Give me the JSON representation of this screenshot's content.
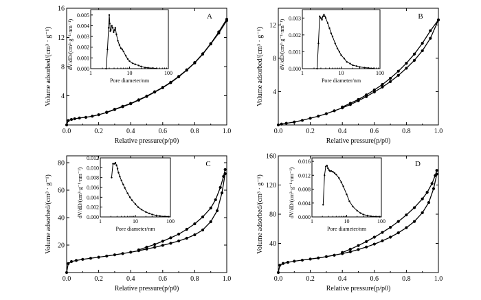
{
  "chart_data": [
    {
      "type": "line",
      "panel_label": "A",
      "xlabel": "Relative pressure(p/p0)",
      "ylabel": "Volume adsorbed/(cm³ · g⁻¹)",
      "xlim": [
        0,
        1.0
      ],
      "ylim": [
        0,
        16
      ],
      "xticks": [
        "0.0",
        "0.2",
        "0.4",
        "0.6",
        "0.8",
        "1.0"
      ],
      "yticks": [
        "4",
        "8",
        "12",
        "16"
      ],
      "series": [
        {
          "x": [
            0.0,
            0.01,
            0.03,
            0.05,
            0.08,
            0.12,
            0.16,
            0.2,
            0.25,
            0.3,
            0.35,
            0.4,
            0.45,
            0.5,
            0.55,
            0.6,
            0.65,
            0.7,
            0.75,
            0.8,
            0.85,
            0.9,
            0.95,
            1.0
          ],
          "y": [
            0.0,
            0.6,
            0.75,
            0.85,
            0.95,
            1.05,
            1.2,
            1.4,
            1.7,
            2.1,
            2.5,
            2.9,
            3.4,
            3.9,
            4.5,
            5.1,
            5.8,
            6.6,
            7.5,
            8.5,
            9.7,
            11.1,
            12.6,
            14.3
          ]
        },
        {
          "x": [
            0.25,
            0.3,
            0.35,
            0.4,
            0.45,
            0.5,
            0.55,
            0.6,
            0.65,
            0.7,
            0.75,
            0.8,
            0.85,
            0.9,
            0.95,
            1.0
          ],
          "y": [
            1.75,
            2.15,
            2.55,
            2.95,
            3.45,
            3.95,
            4.55,
            5.15,
            5.85,
            6.65,
            7.55,
            8.55,
            9.75,
            11.15,
            12.75,
            14.5
          ]
        }
      ],
      "inset": {
        "xlabel": "Pore diameter/nm",
        "ylabel": "dV/dD/(cm³·g⁻¹·nm⁻¹)",
        "xscale": "log",
        "xlim": [
          1,
          100
        ],
        "ylim": [
          0,
          0.0055
        ],
        "xticks": [
          "1",
          "10",
          "100"
        ],
        "yticks": [
          "0.000",
          "0.001",
          "0.002",
          "0.003",
          "0.004",
          "0.005"
        ],
        "x": [
          2.5,
          2.7,
          2.9,
          3.0,
          3.1,
          3.2,
          3.3,
          3.5,
          3.7,
          3.9,
          4.1,
          4.3,
          4.6,
          5.0,
          5.5,
          6.0,
          6.5,
          7.0,
          8,
          9,
          10,
          12,
          14,
          17,
          20,
          25,
          30,
          40,
          50
        ],
        "y": [
          0.0,
          0.0018,
          0.0038,
          0.005,
          0.0042,
          0.0035,
          0.0036,
          0.004,
          0.0038,
          0.0034,
          0.0036,
          0.0038,
          0.0032,
          0.0026,
          0.0022,
          0.0019,
          0.0018,
          0.0016,
          0.0012,
          0.0009,
          0.0007,
          0.0005,
          0.0004,
          0.0003,
          0.0002,
          0.0001,
          8e-05,
          5e-05,
          3e-05
        ]
      }
    },
    {
      "type": "line",
      "panel_label": "B",
      "xlabel": "Relative pressure(p/p0)",
      "ylabel": "Volume adsorbed/(cm³ · g⁻¹)",
      "xlim": [
        0,
        1.0
      ],
      "ylim": [
        0,
        14
      ],
      "xticks": [
        "0.0",
        "0.2",
        "0.4",
        "0.6",
        "0.8",
        "1.0"
      ],
      "yticks": [
        "4",
        "8",
        "12"
      ],
      "series": [
        {
          "x": [
            0.0,
            0.02,
            0.05,
            0.1,
            0.15,
            0.2,
            0.25,
            0.3,
            0.35,
            0.4,
            0.45,
            0.5,
            0.55,
            0.6,
            0.65,
            0.7,
            0.75,
            0.8,
            0.85,
            0.9,
            0.95,
            1.0
          ],
          "y": [
            0.0,
            0.1,
            0.2,
            0.35,
            0.55,
            0.8,
            1.05,
            1.35,
            1.7,
            2.05,
            2.45,
            2.9,
            3.4,
            3.95,
            4.55,
            5.2,
            5.95,
            6.8,
            7.75,
            8.9,
            10.4,
            12.6
          ]
        },
        {
          "x": [
            0.4,
            0.45,
            0.5,
            0.55,
            0.6,
            0.65,
            0.7,
            0.75,
            0.8,
            0.85,
            0.9,
            0.95,
            1.0
          ],
          "y": [
            2.15,
            2.6,
            3.05,
            3.6,
            4.2,
            4.85,
            5.6,
            6.45,
            7.4,
            8.5,
            9.8,
            11.3,
            12.6
          ]
        }
      ],
      "inset": {
        "xlabel": "Pore diameter/nm",
        "ylabel": "dV/dD/(cm³·g⁻¹·nm⁻¹)",
        "xscale": "log",
        "xlim": [
          1,
          100
        ],
        "ylim": [
          0,
          0.0035
        ],
        "xticks": [
          "1",
          "10",
          "100"
        ],
        "yticks": [
          "0.000",
          "0.001",
          "0.002",
          "0.003"
        ],
        "x": [
          2.4,
          2.6,
          2.8,
          3.0,
          3.2,
          3.4,
          3.6,
          3.8,
          4.0,
          4.5,
          5.0,
          5.5,
          6,
          7,
          8,
          9,
          10,
          12,
          14,
          17,
          20,
          25,
          30,
          40,
          50,
          70
        ],
        "y": [
          0.0,
          0.0015,
          0.0031,
          0.003,
          0.0029,
          0.0031,
          0.0032,
          0.0031,
          0.003,
          0.0027,
          0.0024,
          0.0021,
          0.0019,
          0.0015,
          0.0012,
          0.001,
          0.0008,
          0.0006,
          0.0004,
          0.0003,
          0.0002,
          0.00015,
          0.0001,
          6e-05,
          4e-05,
          2e-05
        ]
      }
    },
    {
      "type": "line",
      "panel_label": "C",
      "xlabel": "Relative pressure(p/p0)",
      "ylabel": "Volume adsorbed/(cm³ · g⁻¹)",
      "xlim": [
        0,
        1.0
      ],
      "ylim": [
        0,
        85
      ],
      "xticks": [
        "0.0",
        "0.2",
        "0.4",
        "0.6",
        "0.8",
        "1.0"
      ],
      "yticks": [
        "20",
        "40",
        "60",
        "80"
      ],
      "series": [
        {
          "x": [
            0.0,
            0.01,
            0.03,
            0.06,
            0.1,
            0.15,
            0.2,
            0.25,
            0.3,
            0.35,
            0.4,
            0.45,
            0.5,
            0.55,
            0.6,
            0.65,
            0.7,
            0.75,
            0.8,
            0.85,
            0.9,
            0.94,
            0.97,
            0.99
          ],
          "y": [
            0.0,
            6.5,
            8.0,
            8.8,
            9.6,
            10.4,
            11.2,
            12.0,
            12.9,
            13.8,
            14.8,
            15.9,
            17.1,
            18.4,
            19.8,
            21.3,
            23.0,
            25.0,
            27.5,
            31.0,
            37.0,
            45.0,
            58.0,
            72.0
          ]
        },
        {
          "x": [
            0.45,
            0.5,
            0.55,
            0.6,
            0.65,
            0.7,
            0.75,
            0.8,
            0.85,
            0.9,
            0.93,
            0.96,
            0.98,
            0.99
          ],
          "y": [
            16.5,
            18.5,
            20.5,
            22.8,
            25.3,
            28.0,
            31.5,
            35.5,
            40.5,
            47.0,
            53.0,
            62.0,
            70.0,
            75.0
          ]
        }
      ],
      "inset": {
        "xlabel": "Pore diameter/nm",
        "ylabel": "dV/dD/(cm³·g⁻¹·nm⁻¹)",
        "xscale": "log",
        "xlim": [
          1,
          100
        ],
        "ylim": [
          0,
          0.012
        ],
        "xticks": [
          "1",
          "10",
          "100"
        ],
        "yticks": [
          "0.000",
          "0.002",
          "0.004",
          "0.006",
          "0.008",
          "0.010",
          "0.012"
        ],
        "x": [
          2.1,
          2.3,
          2.5,
          2.7,
          2.9,
          3.1,
          3.3,
          3.6,
          4.0,
          4.5,
          5,
          6,
          7,
          8,
          10,
          12,
          15,
          20,
          25,
          30,
          40,
          50,
          70,
          90
        ],
        "y": [
          0.008,
          0.0108,
          0.0108,
          0.011,
          0.0105,
          0.0098,
          0.009,
          0.0082,
          0.0074,
          0.0066,
          0.0059,
          0.0048,
          0.004,
          0.0034,
          0.0026,
          0.002,
          0.0015,
          0.001,
          0.0007,
          0.0005,
          0.0003,
          0.0002,
          0.0001,
          5e-05
        ]
      }
    },
    {
      "type": "line",
      "panel_label": "D",
      "xlabel": "Relative pressure(p/p0)",
      "ylabel": "Volume adsorbed/(cm³ · g⁻¹)",
      "xlim": [
        0,
        1.0
      ],
      "ylim": [
        0,
        160
      ],
      "xticks": [
        "0.0",
        "0.2",
        "0.4",
        "0.6",
        "0.8",
        "1.0"
      ],
      "yticks": [
        "40",
        "80",
        "120",
        "160"
      ],
      "series": [
        {
          "x": [
            0.0,
            0.01,
            0.03,
            0.06,
            0.1,
            0.15,
            0.2,
            0.25,
            0.3,
            0.35,
            0.4,
            0.45,
            0.5,
            0.55,
            0.6,
            0.65,
            0.7,
            0.75,
            0.8,
            0.85,
            0.9,
            0.94,
            0.97,
            0.99
          ],
          "y": [
            0.0,
            10.0,
            12.5,
            14.0,
            15.5,
            17.0,
            18.5,
            20.0,
            21.8,
            23.8,
            26.0,
            28.5,
            31.5,
            35.0,
            39.0,
            43.5,
            48.5,
            54.5,
            61.5,
            70.0,
            82.0,
            96.0,
            115.0,
            135.0
          ]
        },
        {
          "x": [
            0.4,
            0.45,
            0.5,
            0.55,
            0.6,
            0.65,
            0.7,
            0.75,
            0.8,
            0.85,
            0.9,
            0.93,
            0.96,
            0.98,
            0.99
          ],
          "y": [
            27.5,
            32.0,
            37.0,
            42.5,
            48.5,
            55.0,
            62.0,
            70.0,
            79.0,
            89.0,
            101.0,
            110.0,
            122.0,
            133.0,
            140.0
          ]
        }
      ],
      "inset": {
        "xlabel": "Pore diameter/nm",
        "ylabel": "dV/dD/(cm³·g⁻¹·nm⁻¹)",
        "xscale": "log",
        "xlim": [
          1,
          100
        ],
        "ylim": [
          0,
          0.017
        ],
        "xticks": [
          "1",
          "10",
          "100"
        ],
        "yticks": [
          "0.000",
          "0.004",
          "0.008",
          "0.012",
          "0.016"
        ],
        "x": [
          2.1,
          2.3,
          2.5,
          2.7,
          2.9,
          3.1,
          3.3,
          3.6,
          4.0,
          4.5,
          5,
          6,
          7,
          8,
          10,
          12,
          15,
          20,
          25,
          30,
          40,
          50,
          70,
          90
        ],
        "y": [
          0.0035,
          0.012,
          0.0145,
          0.0148,
          0.014,
          0.0135,
          0.0132,
          0.0132,
          0.013,
          0.0126,
          0.0122,
          0.0112,
          0.01,
          0.0088,
          0.0065,
          0.0045,
          0.003,
          0.0018,
          0.0011,
          0.0007,
          0.0004,
          0.0002,
          0.0001,
          5e-05
        ]
      }
    }
  ]
}
